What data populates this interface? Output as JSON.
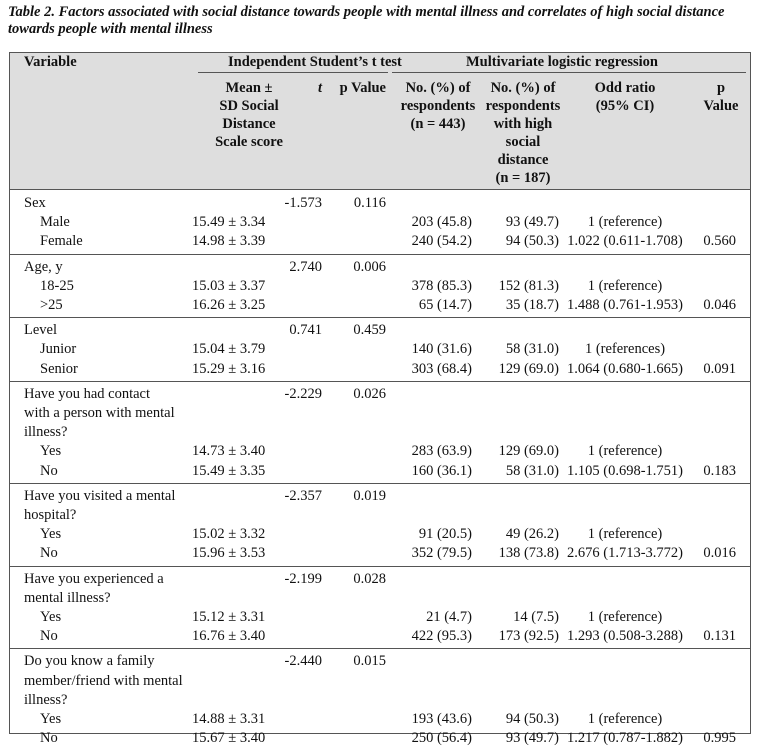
{
  "caption": "Table 2. Factors associated with social distance towards people with mental illness and correlates of high social distance towards people with mental illness",
  "headers": {
    "variable": "Variable",
    "ttest_group": "Independent Student’s t test",
    "logit_group": "Multivariate logistic regression",
    "mean": [
      "Mean ±",
      "SD Social",
      "Distance",
      "Scale score"
    ],
    "t": "t",
    "p": "p Value",
    "n_all": [
      "No. (%) of",
      "respondents",
      "(n = 443)"
    ],
    "n_high": [
      "No. (%) of",
      "respondents",
      "with high",
      "social",
      "distance",
      "(n = 187)"
    ],
    "or": [
      "Odd ratio",
      "(95% CI)"
    ],
    "p2": [
      "p",
      "Value"
    ]
  },
  "groups": [
    {
      "label": [
        "Sex"
      ],
      "t": "-1.573",
      "p": "0.116",
      "rows": [
        {
          "label": "Male",
          "mean": "15.49 ± 3.34",
          "n_all": "203 (45.8)",
          "n_high": "93 (49.7)",
          "or": "1 (reference)",
          "p2": ""
        },
        {
          "label": "Female",
          "mean": "14.98 ± 3.39",
          "n_all": "240 (54.2)",
          "n_high": "94 (50.3)",
          "or": "1.022 (0.611-1.708)",
          "p2": "0.560"
        }
      ]
    },
    {
      "label": [
        "Age, y"
      ],
      "t": "2.740",
      "p": "0.006",
      "rows": [
        {
          "label": "18-25",
          "mean": "15.03 ± 3.37",
          "n_all": "378 (85.3)",
          "n_high": "152 (81.3)",
          "or": "1 (reference)",
          "p2": ""
        },
        {
          "label": ">25",
          "mean": "16.26 ± 3.25",
          "n_all": "65 (14.7)",
          "n_high": "35 (18.7)",
          "or": "1.488 (0.761-1.953)",
          "p2": "0.046"
        }
      ]
    },
    {
      "label": [
        "Level"
      ],
      "t": "0.741",
      "p": "0.459",
      "rows": [
        {
          "label": "Junior",
          "mean": "15.04 ± 3.79",
          "n_all": "140 (31.6)",
          "n_high": "58 (31.0)",
          "or": "1 (references)",
          "p2": ""
        },
        {
          "label": "Senior",
          "mean": "15.29 ± 3.16",
          "n_all": "303 (68.4)",
          "n_high": "129 (69.0)",
          "or": "1.064 (0.680-1.665)",
          "p2": "0.091"
        }
      ]
    },
    {
      "label": [
        "Have you had contact",
        "with a person with mental",
        "illness?"
      ],
      "t": "-2.229",
      "p": "0.026",
      "rows": [
        {
          "label": "Yes",
          "mean": "14.73 ± 3.40",
          "n_all": "283 (63.9)",
          "n_high": "129 (69.0)",
          "or": "1 (reference)",
          "p2": ""
        },
        {
          "label": "No",
          "mean": "15.49 ± 3.35",
          "n_all": "160 (36.1)",
          "n_high": "58 (31.0)",
          "or": "1.105 (0.698-1.751)",
          "p2": "0.183"
        }
      ]
    },
    {
      "label": [
        "Have you visited a mental",
        "hospital?"
      ],
      "t": "-2.357",
      "p": "0.019",
      "rows": [
        {
          "label": "Yes",
          "mean": "15.02 ± 3.32",
          "n_all": "91 (20.5)",
          "n_high": "49 (26.2)",
          "or": "1 (reference)",
          "p2": ""
        },
        {
          "label": "No",
          "mean": "15.96 ± 3.53",
          "n_all": "352 (79.5)",
          "n_high": "138 (73.8)",
          "or": "2.676 (1.713-3.772)",
          "p2": "0.016"
        }
      ]
    },
    {
      "label": [
        "Have you experienced a",
        "mental illness?"
      ],
      "t": "-2.199",
      "p": "0.028",
      "rows": [
        {
          "label": "Yes",
          "mean": "15.12 ± 3.31",
          "n_all": "21 (4.7)",
          "n_high": "14 (7.5)",
          "or": "1 (reference)",
          "p2": ""
        },
        {
          "label": "No",
          "mean": "16.76 ± 3.40",
          "n_all": "422 (95.3)",
          "n_high": "173 (92.5)",
          "or": "1.293 (0.508-3.288)",
          "p2": "0.131"
        }
      ]
    },
    {
      "label": [
        "Do you know a family",
        "member/friend with mental",
        "illness?"
      ],
      "t": "-2.440",
      "p": "0.015",
      "rows": [
        {
          "label": "Yes",
          "mean": "14.88 ± 3.31",
          "n_all": "193 (43.6)",
          "n_high": "94 (50.3)",
          "or": "1 (reference)",
          "p2": ""
        },
        {
          "label": "No",
          "mean": "15.67 ± 3.40",
          "n_all": "250 (56.4)",
          "n_high": "93 (49.7)",
          "or": "1.217 (0.787-1.882)",
          "p2": "0.995"
        }
      ]
    }
  ]
}
